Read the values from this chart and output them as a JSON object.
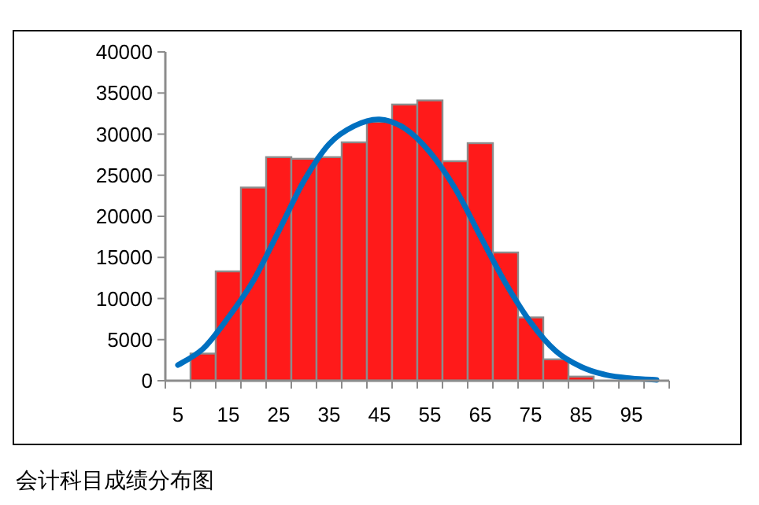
{
  "chart_data": {
    "type": "bar",
    "categories": [
      "5",
      null,
      "15",
      null,
      "25",
      null,
      "35",
      null,
      "45",
      null,
      "55",
      null,
      "65",
      null,
      "75",
      null,
      "85",
      null,
      "95",
      null
    ],
    "series": [
      {
        "color": "#ff1a1a",
        "values": [
          0,
          3300,
          13300,
          23500,
          27200,
          27000,
          27200,
          29000,
          31500,
          33600,
          34100,
          26700,
          28900,
          15600,
          7700,
          2600,
          500,
          0,
          0,
          0
        ]
      },
      {
        "type": "line",
        "color": "#0070c0",
        "values": [
          1900,
          3900,
          7700,
          12200,
          18200,
          24300,
          28800,
          31000,
          31800,
          30700,
          27800,
          23400,
          17600,
          11900,
          7100,
          3600,
          1700,
          700,
          300,
          100
        ]
      }
    ],
    "ylim": [
      0,
      40000
    ],
    "yticks": [
      0,
      5000,
      10000,
      15000,
      20000,
      25000,
      30000,
      35000,
      40000
    ],
    "annotations": [
      "会计科目成绩分布图"
    ]
  }
}
